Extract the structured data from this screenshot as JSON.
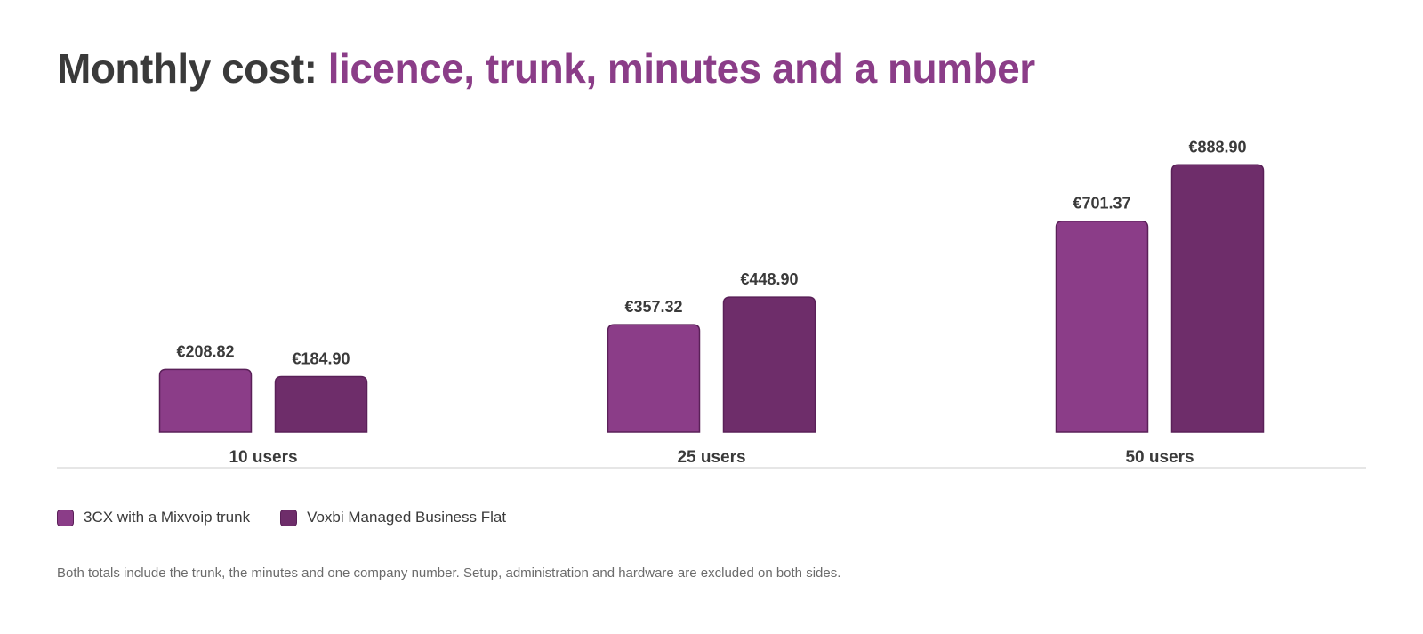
{
  "title": {
    "lead": "Monthly cost:",
    "accent": "licence, trunk, minutes and a number"
  },
  "colors": {
    "title_accent": "#8b3d88",
    "series_1": "#8b3d88",
    "series_2": "#6e2d6a",
    "bar_outline": "#5a2058",
    "text": "#3a3a3a",
    "baseline": "#e6e6e6"
  },
  "chart_data": {
    "type": "bar",
    "categories": [
      "10 users",
      "25 users",
      "50 users"
    ],
    "series": [
      {
        "name": "3CX with a Mixvoip trunk",
        "values": [
          208.82,
          357.32,
          701.37
        ],
        "labels": [
          "€208.82",
          "€357.32",
          "€701.37"
        ]
      },
      {
        "name": "Voxbi Managed Business Flat",
        "values": [
          184.9,
          448.9,
          888.9
        ],
        "labels": [
          "€184.90",
          "€448.90",
          "€888.90"
        ]
      }
    ],
    "ylim": [
      0,
      1000
    ],
    "grid": false,
    "legend_position": "bottom-left"
  },
  "note": "Both totals include the trunk, the minutes and one company number. Setup, administration and hardware are excluded on both sides."
}
